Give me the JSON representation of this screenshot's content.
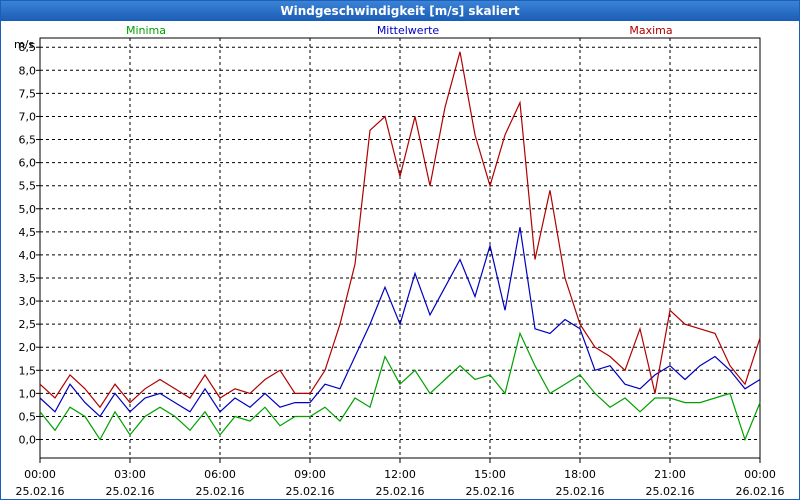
{
  "window": {
    "title": "Windgeschwindigkeit [m/s] skaliert"
  },
  "chart_data": {
    "type": "line",
    "title": "Windgeschwindigkeit [m/s] skaliert",
    "ylabel": "m/s",
    "ylim": [
      -0.4,
      8.7
    ],
    "yticks": [
      0.0,
      0.5,
      1.0,
      1.5,
      2.0,
      2.5,
      3.0,
      3.5,
      4.0,
      4.5,
      5.0,
      5.5,
      6.0,
      6.5,
      7.0,
      7.5,
      8.0,
      8.5
    ],
    "ytick_labels": [
      "0,0",
      "0,5",
      "1,0",
      "1,5",
      "2,0",
      "2,5",
      "3,0",
      "3,5",
      "4,0",
      "4,5",
      "5,0",
      "5,5",
      "6,0",
      "6,5",
      "7,0",
      "7,5",
      "8,0",
      "8,5"
    ],
    "xlim": [
      0,
      24
    ],
    "xticks": [
      0,
      3,
      6,
      9,
      12,
      15,
      18,
      21,
      24
    ],
    "xtick_time": [
      "00:00",
      "03:00",
      "06:00",
      "09:00",
      "12:00",
      "15:00",
      "18:00",
      "21:00",
      "00:00"
    ],
    "xtick_date": [
      "25.02.16",
      "25.02.16",
      "25.02.16",
      "25.02.16",
      "25.02.16",
      "25.02.16",
      "25.02.16",
      "25.02.16",
      "26.02.16"
    ],
    "grid": true,
    "legend": "top",
    "x": [
      0.0,
      0.5,
      1.0,
      1.5,
      2.0,
      2.5,
      3.0,
      3.5,
      4.0,
      4.5,
      5.0,
      5.5,
      6.0,
      6.5,
      7.0,
      7.5,
      8.0,
      8.5,
      9.0,
      9.5,
      10.0,
      10.5,
      11.0,
      11.5,
      12.0,
      12.5,
      13.0,
      13.5,
      14.0,
      14.5,
      15.0,
      15.5,
      16.0,
      16.5,
      17.0,
      17.5,
      18.0,
      18.5,
      19.0,
      19.5,
      20.0,
      20.5,
      21.0,
      21.5,
      22.0,
      22.5,
      23.0,
      23.5,
      24.0
    ],
    "series": [
      {
        "name": "Minima",
        "color": "#00a000",
        "values": [
          0.6,
          0.2,
          0.7,
          0.5,
          0.0,
          0.6,
          0.1,
          0.5,
          0.7,
          0.5,
          0.2,
          0.6,
          0.1,
          0.5,
          0.4,
          0.7,
          0.3,
          0.5,
          0.5,
          0.7,
          0.4,
          0.9,
          0.7,
          1.8,
          1.2,
          1.5,
          1.0,
          1.3,
          1.6,
          1.3,
          1.4,
          1.0,
          2.3,
          1.6,
          1.0,
          1.2,
          1.4,
          1.0,
          0.7,
          0.9,
          0.6,
          0.9,
          0.9,
          0.8,
          0.8,
          0.9,
          1.0,
          0.0,
          0.8
        ]
      },
      {
        "name": "Mittelwerte",
        "color": "#0000c0",
        "values": [
          0.9,
          0.6,
          1.2,
          0.8,
          0.5,
          1.0,
          0.6,
          0.9,
          1.0,
          0.8,
          0.6,
          1.1,
          0.6,
          0.9,
          0.7,
          1.0,
          0.7,
          0.8,
          0.8,
          1.2,
          1.1,
          1.8,
          2.5,
          3.3,
          2.5,
          3.6,
          2.7,
          3.3,
          3.9,
          3.1,
          4.2,
          2.8,
          4.6,
          2.4,
          2.3,
          2.6,
          2.4,
          1.5,
          1.6,
          1.2,
          1.1,
          1.4,
          1.6,
          1.3,
          1.6,
          1.8,
          1.5,
          1.1,
          1.3
        ]
      },
      {
        "name": "Maxima",
        "color": "#b00000",
        "values": [
          1.2,
          0.9,
          1.4,
          1.1,
          0.7,
          1.2,
          0.8,
          1.1,
          1.3,
          1.1,
          0.9,
          1.4,
          0.9,
          1.1,
          1.0,
          1.3,
          1.5,
          1.0,
          1.0,
          1.5,
          2.5,
          3.8,
          6.7,
          7.0,
          5.7,
          7.0,
          5.5,
          7.2,
          8.4,
          6.6,
          5.5,
          6.6,
          7.3,
          3.9,
          5.4,
          3.5,
          2.5,
          2.0,
          1.8,
          1.5,
          2.4,
          1.0,
          2.8,
          2.5,
          2.4,
          2.3,
          1.6,
          1.2,
          2.2
        ]
      }
    ]
  }
}
